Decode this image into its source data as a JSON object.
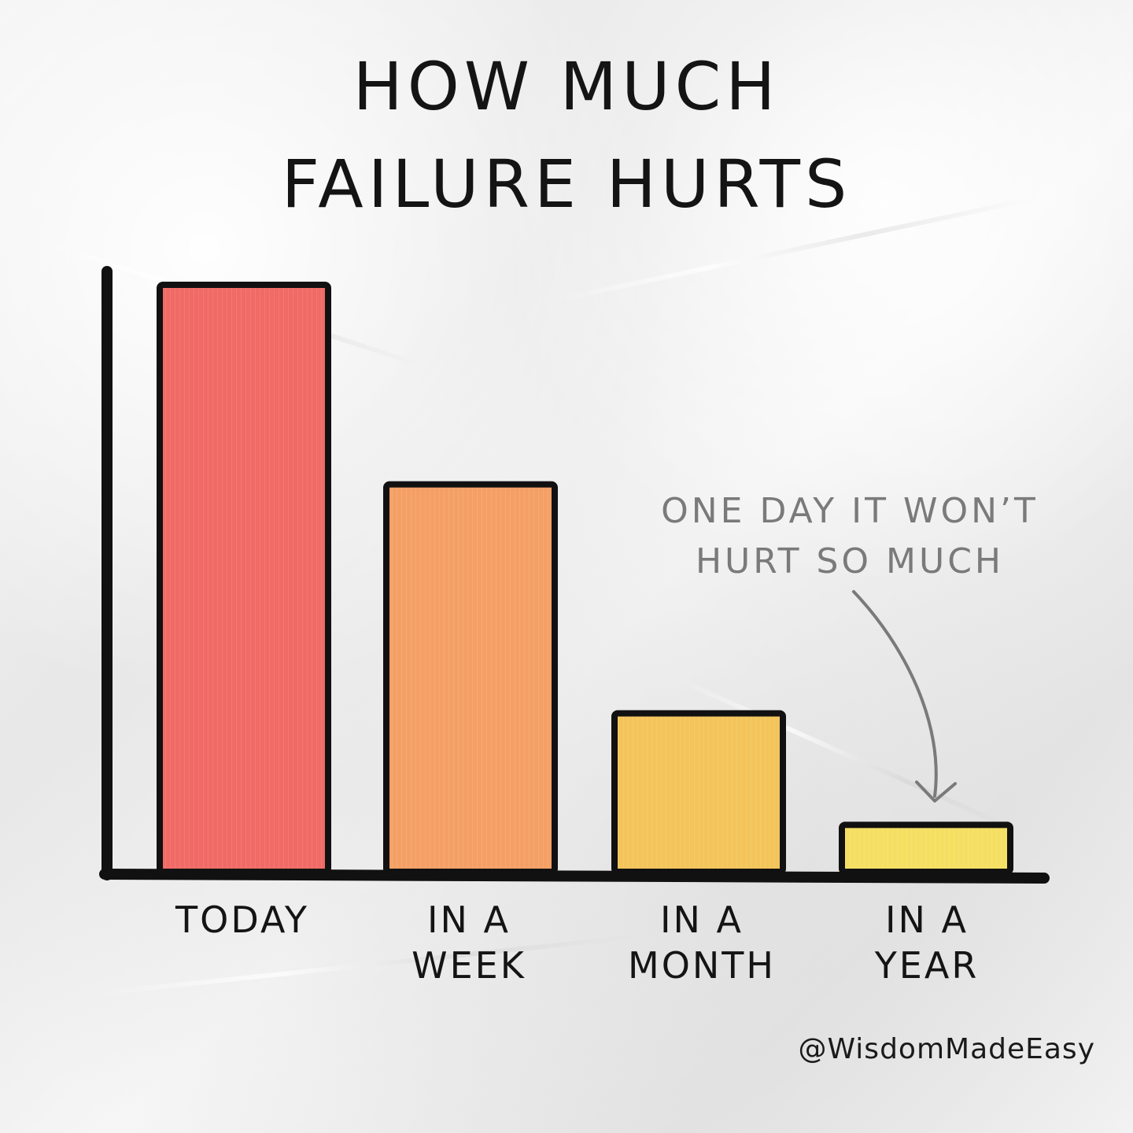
{
  "chart_data": {
    "type": "bar",
    "title_lines": [
      "HOW MUCH",
      "FAILURE HURTS"
    ],
    "categories": [
      [
        "TODAY"
      ],
      [
        "IN A",
        "WEEK"
      ],
      [
        "IN A",
        "MONTH"
      ],
      [
        "IN A",
        "YEAR"
      ]
    ],
    "values": [
      100,
      66,
      27,
      8
    ],
    "ylim": [
      0,
      100
    ],
    "colors": [
      "#f06a66",
      "#f4a065",
      "#f3c45a",
      "#f5df62"
    ],
    "annotation": {
      "lines": [
        "ONE DAY IT WON’T",
        "HURT SO MUCH"
      ],
      "points_to_category": 3
    }
  },
  "watermark": "@WisdomMadeEasy"
}
